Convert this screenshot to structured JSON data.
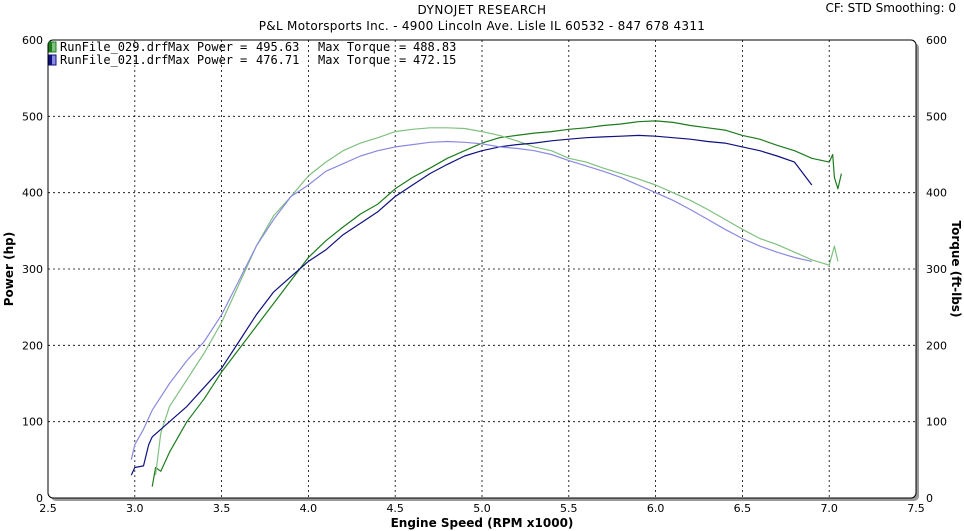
{
  "header": {
    "title": "DYNOJET RESEARCH",
    "subtitle": "P&L Motorsports Inc. - 4900 Lincoln Ave. Lisle IL 60532 - 847 678 4311",
    "settings": "CF: STD  Smoothing: 0"
  },
  "colors": {
    "run029_power": "#1e7b1e",
    "run029_torque": "#80c080",
    "run021_power": "#101080",
    "run021_torque": "#8a8ae0"
  },
  "chart_data": {
    "type": "line",
    "xlabel": "Engine Speed (RPM x1000)",
    "ylabel_left": "Power (hp)",
    "ylabel_right": "Torque (ft-lbs)",
    "xlim": [
      2.5,
      7.5
    ],
    "ylim": [
      0,
      600
    ],
    "xticks": [
      "2.5",
      "3.0",
      "3.5",
      "4.0",
      "4.5",
      "5.0",
      "5.5",
      "6.0",
      "6.5",
      "7.0",
      "7.5"
    ],
    "yticks": [
      "0",
      "100",
      "200",
      "300",
      "400",
      "500",
      "600"
    ],
    "grid": true,
    "legend_position": "top-left",
    "legend": [
      {
        "file": "RunFile_029.drf",
        "max_power_label": "Max Power",
        "max_power": "495.63",
        "max_torque_label": "Max Torque",
        "max_torque": "488.83"
      },
      {
        "file": "RunFile_021.drf",
        "max_power_label": "Max Power",
        "max_power": "476.71",
        "max_torque_label": "Max Torque",
        "max_torque": "472.15"
      }
    ],
    "series": [
      {
        "run": "RunFile_029.drf",
        "measure": "Power",
        "color": "#1e7b1e",
        "x": [
          3.1,
          3.12,
          3.15,
          3.2,
          3.3,
          3.4,
          3.5,
          3.6,
          3.7,
          3.8,
          3.9,
          4.0,
          4.1,
          4.2,
          4.3,
          4.4,
          4.5,
          4.6,
          4.7,
          4.8,
          4.9,
          5.0,
          5.1,
          5.2,
          5.3,
          5.4,
          5.5,
          5.6,
          5.7,
          5.8,
          5.9,
          6.0,
          6.1,
          6.2,
          6.3,
          6.4,
          6.5,
          6.6,
          6.7,
          6.8,
          6.9,
          7.0,
          7.02,
          7.03,
          7.05,
          7.07
        ],
        "y": [
          15,
          40,
          35,
          60,
          100,
          130,
          165,
          195,
          225,
          255,
          285,
          315,
          337,
          355,
          372,
          385,
          405,
          420,
          432,
          445,
          455,
          465,
          472,
          475,
          478,
          480,
          483,
          485,
          488,
          490,
          493,
          494,
          492,
          488,
          485,
          482,
          475,
          470,
          462,
          455,
          445,
          440,
          450,
          420,
          405,
          425
        ]
      },
      {
        "run": "RunFile_029.drf",
        "measure": "Torque",
        "color": "#80c080",
        "x": [
          3.12,
          3.15,
          3.2,
          3.3,
          3.4,
          3.5,
          3.6,
          3.7,
          3.8,
          3.9,
          4.0,
          4.1,
          4.2,
          4.3,
          4.4,
          4.5,
          4.6,
          4.7,
          4.8,
          4.9,
          5.0,
          5.1,
          5.2,
          5.3,
          5.4,
          5.5,
          5.6,
          5.7,
          5.8,
          5.9,
          6.0,
          6.1,
          6.2,
          6.3,
          6.4,
          6.5,
          6.6,
          6.7,
          6.8,
          6.9,
          7.0,
          7.03,
          7.05
        ],
        "y": [
          30,
          85,
          120,
          155,
          190,
          230,
          280,
          330,
          370,
          395,
          422,
          440,
          455,
          465,
          472,
          480,
          483,
          485,
          485,
          484,
          480,
          475,
          468,
          460,
          455,
          445,
          440,
          432,
          425,
          418,
          410,
          400,
          390,
          378,
          365,
          352,
          340,
          332,
          322,
          312,
          305,
          330,
          310
        ]
      },
      {
        "run": "RunFile_021.drf",
        "measure": "Power",
        "color": "#101080",
        "x": [
          2.98,
          3.0,
          3.05,
          3.08,
          3.1,
          3.2,
          3.3,
          3.4,
          3.5,
          3.6,
          3.7,
          3.8,
          3.9,
          4.0,
          4.1,
          4.2,
          4.3,
          4.4,
          4.5,
          4.6,
          4.7,
          4.8,
          4.9,
          5.0,
          5.1,
          5.2,
          5.3,
          5.4,
          5.5,
          5.6,
          5.7,
          5.8,
          5.9,
          6.0,
          6.1,
          6.2,
          6.3,
          6.4,
          6.5,
          6.6,
          6.7,
          6.8,
          6.9
        ],
        "y": [
          30,
          40,
          42,
          70,
          80,
          100,
          120,
          145,
          170,
          205,
          240,
          270,
          290,
          310,
          325,
          345,
          360,
          375,
          395,
          410,
          425,
          437,
          448,
          455,
          460,
          463,
          465,
          468,
          470,
          472,
          473,
          474,
          475,
          474,
          472,
          470,
          467,
          465,
          460,
          455,
          448,
          440,
          410
        ]
      },
      {
        "run": "RunFile_021.drf",
        "measure": "Torque",
        "color": "#8a8ae0",
        "x": [
          2.98,
          3.0,
          3.05,
          3.1,
          3.2,
          3.3,
          3.4,
          3.5,
          3.6,
          3.7,
          3.8,
          3.9,
          4.0,
          4.1,
          4.2,
          4.3,
          4.4,
          4.5,
          4.6,
          4.7,
          4.8,
          4.9,
          5.0,
          5.1,
          5.2,
          5.3,
          5.4,
          5.5,
          5.6,
          5.7,
          5.8,
          5.9,
          6.0,
          6.1,
          6.2,
          6.3,
          6.4,
          6.5,
          6.6,
          6.7,
          6.8,
          6.9
        ],
        "y": [
          50,
          70,
          90,
          115,
          150,
          180,
          205,
          240,
          285,
          330,
          365,
          395,
          410,
          428,
          438,
          448,
          455,
          460,
          463,
          466,
          467,
          466,
          464,
          460,
          458,
          455,
          450,
          442,
          435,
          428,
          420,
          410,
          400,
          390,
          378,
          365,
          352,
          340,
          330,
          322,
          315,
          310
        ]
      }
    ]
  }
}
